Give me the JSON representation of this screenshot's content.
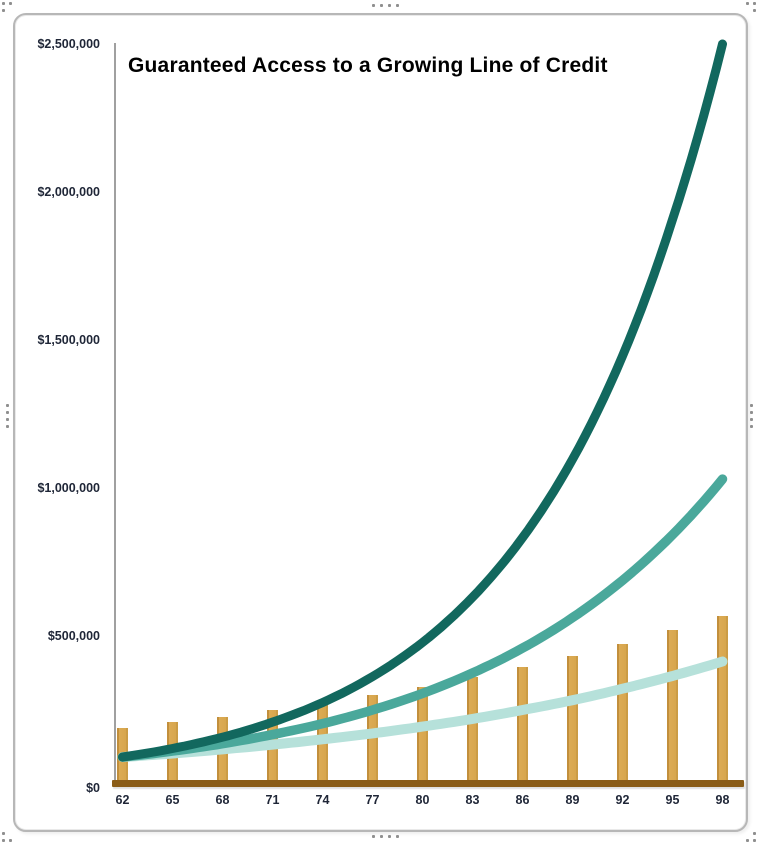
{
  "chart_data": {
    "type": "combo-bar-line",
    "title": "Guaranteed Access to a Growing Line of Credit",
    "legend": "none",
    "grid": false,
    "x_axis": {
      "tick_labels": [
        "62",
        "65",
        "68",
        "71",
        "74",
        "77",
        "80",
        "83",
        "86",
        "89",
        "92",
        "95",
        "98"
      ]
    },
    "y_axis": {
      "min": 0,
      "max": 2500000,
      "tick_interval": 500000,
      "tick_values": [
        2500000,
        2000000,
        1500000,
        1000000,
        500000,
        0
      ],
      "tick_labels": [
        "$2,500,000",
        "$2,000,000",
        "$1,500,000",
        "$1,000,000",
        "$500,000",
        "$0"
      ]
    },
    "bar_series": {
      "name": "gold-bars",
      "color": "#d7a64d",
      "values": [
        190000,
        208000,
        228000,
        250000,
        274000,
        300000,
        329000,
        360000,
        395000,
        433000,
        474000,
        520000,
        569000
      ]
    },
    "line_series": [
      {
        "name": "dark-teal-curve",
        "color": "#12685e",
        "stroke_width": 9,
        "values": [
          91000,
          120000,
          158000,
          209000,
          275000,
          363000,
          478000,
          631000,
          832000,
          1097000,
          1446000,
          1907000,
          2500000
        ]
      },
      {
        "name": "medium-teal-curve",
        "color": "#4aa89b",
        "stroke_width": 9.5,
        "values": [
          91000,
          111000,
          136000,
          167000,
          204000,
          250000,
          306000,
          375000,
          459000,
          562000,
          688000,
          842000,
          1030000
        ]
      },
      {
        "name": "light-teal-curve",
        "color": "#b6e1da",
        "stroke_width": 10,
        "values": [
          91000,
          103000,
          117000,
          133000,
          151000,
          171000,
          194000,
          220000,
          250000,
          283000,
          322000,
          365000,
          414000
        ]
      }
    ],
    "colors": {
      "axis_line": "#a0a0a0",
      "baseline": "#8a5c17",
      "tick_text": "#1f2637",
      "title_text": "#000000"
    }
  }
}
